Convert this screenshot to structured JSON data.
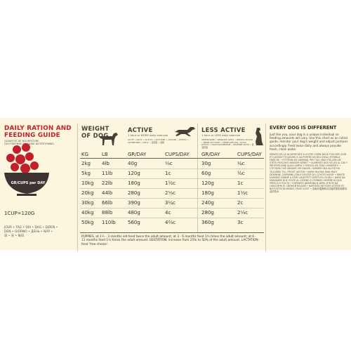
{
  "guide": {
    "title_line1": "DAILY RATION AND",
    "title_line2": "FEEDING GUIDE",
    "subtitle_fr": "QUANTITÉ DE NOURRITURE",
    "subtitle_fr2": "QUOTIDIENNE ET GUIDE NUTRITIONNEL",
    "bowl_label": "GR/CUPS per DAY",
    "cup_eq": "1CUP=120G",
    "day_translations_1": "JOUR • TAG • DÍA • DAG • DZIEŃ •",
    "day_translations_2": "DEN • GIORNO • ДЕНЬ • NAP •",
    "day_translations_3": "日 • 天 • 每日"
  },
  "table": {
    "weight_header_1": "WEIGHT",
    "weight_header_2": "OF DOG",
    "active_header": "ACTIVE",
    "active_sub": "1 hour or MORE daily exercise",
    "active_sub_lang": "ACTIF • AKTIV • ACTIVO • AKTYWNY • AKTIVNÍ • ATTIVO • АКТИВНЫЙ • AKTÍV • 活跃型 • 活躍",
    "less_active_header": "LESS ACTIVE",
    "less_active_sub": "1 hour or LESS daily exercise",
    "less_active_sub_lang": "SÉDENTAIRE • WENIGER AKTIV • MENOS ACTIVO • MNIEJ AKTYWNY • MÉNĚ AKTIVNÍ • POCO ATTIVO • МАЛОАКТИВНЫЙ • KEVÉSBÉ AKTÍV • 低活跃型",
    "col_kg": "KG",
    "col_lb": "LB",
    "col_gr": "GR/DAY",
    "col_cups": "CUPS/DAY",
    "col_gr2": "GR/DAY",
    "col_cups2": "CUPS/DAY",
    "rows": [
      {
        "kg": "2kg",
        "lb": "4lb",
        "a_gr": "40g",
        "a_cups": "⅓c",
        "l_gr": "30g",
        "l_cups": "¼c"
      },
      {
        "kg": "5kg",
        "lb": "11lb",
        "a_gr": "120g",
        "a_cups": "1c",
        "l_gr": "60g",
        "l_cups": "½c"
      },
      {
        "kg": "10kg",
        "lb": "22lb",
        "a_gr": "180g",
        "a_cups": "1½c",
        "l_gr": "120g",
        "l_cups": "1c"
      },
      {
        "kg": "20kg",
        "lb": "44lb",
        "a_gr": "280g",
        "a_cups": "2⅓c",
        "l_gr": "180g",
        "l_cups": "1½c"
      },
      {
        "kg": "30kg",
        "lb": "66lb",
        "a_gr": "390g",
        "a_cups": "3¼c",
        "l_gr": "240g",
        "l_cups": "2c"
      },
      {
        "kg": "40kg",
        "lb": "88lb",
        "a_gr": "480g",
        "a_cups": "4c",
        "l_gr": "280g",
        "l_cups": "2⅓c"
      },
      {
        "kg": "50kg",
        "lb": "110lb",
        "a_gr": "560g",
        "a_cups": "4⅔c",
        "l_gr": "360g",
        "l_cups": "3c"
      }
    ],
    "footnote": "PUPPIES, at 1½ - 3 months old feed twice the adult amount; at 3 - 6 months feed 1¾ times the adult amount; at 6 - 11 months feed 1¼ times the adult amount. GESTATION: increase from 25% to 50% of the adult amount. LACTATION: feed 'free choice'."
  },
  "notes": {
    "title": "EVERY DOG IS DIFFERENT",
    "body": "Just like you, your dog is a unique individual so feeding amounts will vary. Use this chart as an initial guide, monitor your dog's weight and adjust portions accordingly. Feed twice daily and always provide fresh, clean water.",
    "translations": "SERVEZ DE LA NOURRITURE À VOTRE CHIEN DEUX FOIS PAR JOUR ET LAISSEZ TOUJOURS À SA PORTÉE UN BOL D'EAU POTABLE FRAÎCHE • FÜTTERN SIE ZWEIMAL PRO TAG UND STELLEN SIE STETS FRISCHES WASSER BEREIT • ALIMENTE DOS VECES AL DÍA Y PROPORCIONE AGUA LIMPIA Y FRESCA EN TODO MOMENTO • UTFODRA TVÅ GÅNGER OM DAGEN. HUNDEN SKA ALLTID HA TILLGÅNG TILL FRISKT VATTEN • KARM PALONA DWA RAZY DZIENNIE, ZAPEWNIJ STAŁY DOSTĘP DO CZYSTEJ WODY • KRMTE DVAKRÁT DENNĚ A VŽDY ZAJISTĚTE ČERSTVOU VODU • DARE DA MANGIARE DUE VOLTE AL GIORNO E FORNIRE SEMPRE ACQUA FRESCA E PULITA • КОРМИТЕ ДВАЖДЫ В ДЕНЬ И ВСЕГДА ОБЕСПЕЧЬТЕ СВЕЖЕЙ ВОДОЙ • NAPONTA KÉTSZER ETESSE ÉS BIZTOSÍTSON MINDIG FRISS VIZET • 请每天喂食两次并始终提供新鲜清洁的饮水"
  },
  "colors": {
    "accent_red": "#c21f2b",
    "band_bg": "#fbf6dd",
    "bowl": "#3d3431"
  },
  "icons": [
    "bowl-icon",
    "standing-dog-icon",
    "running-dog-icon",
    "sitting-dog-icon"
  ]
}
